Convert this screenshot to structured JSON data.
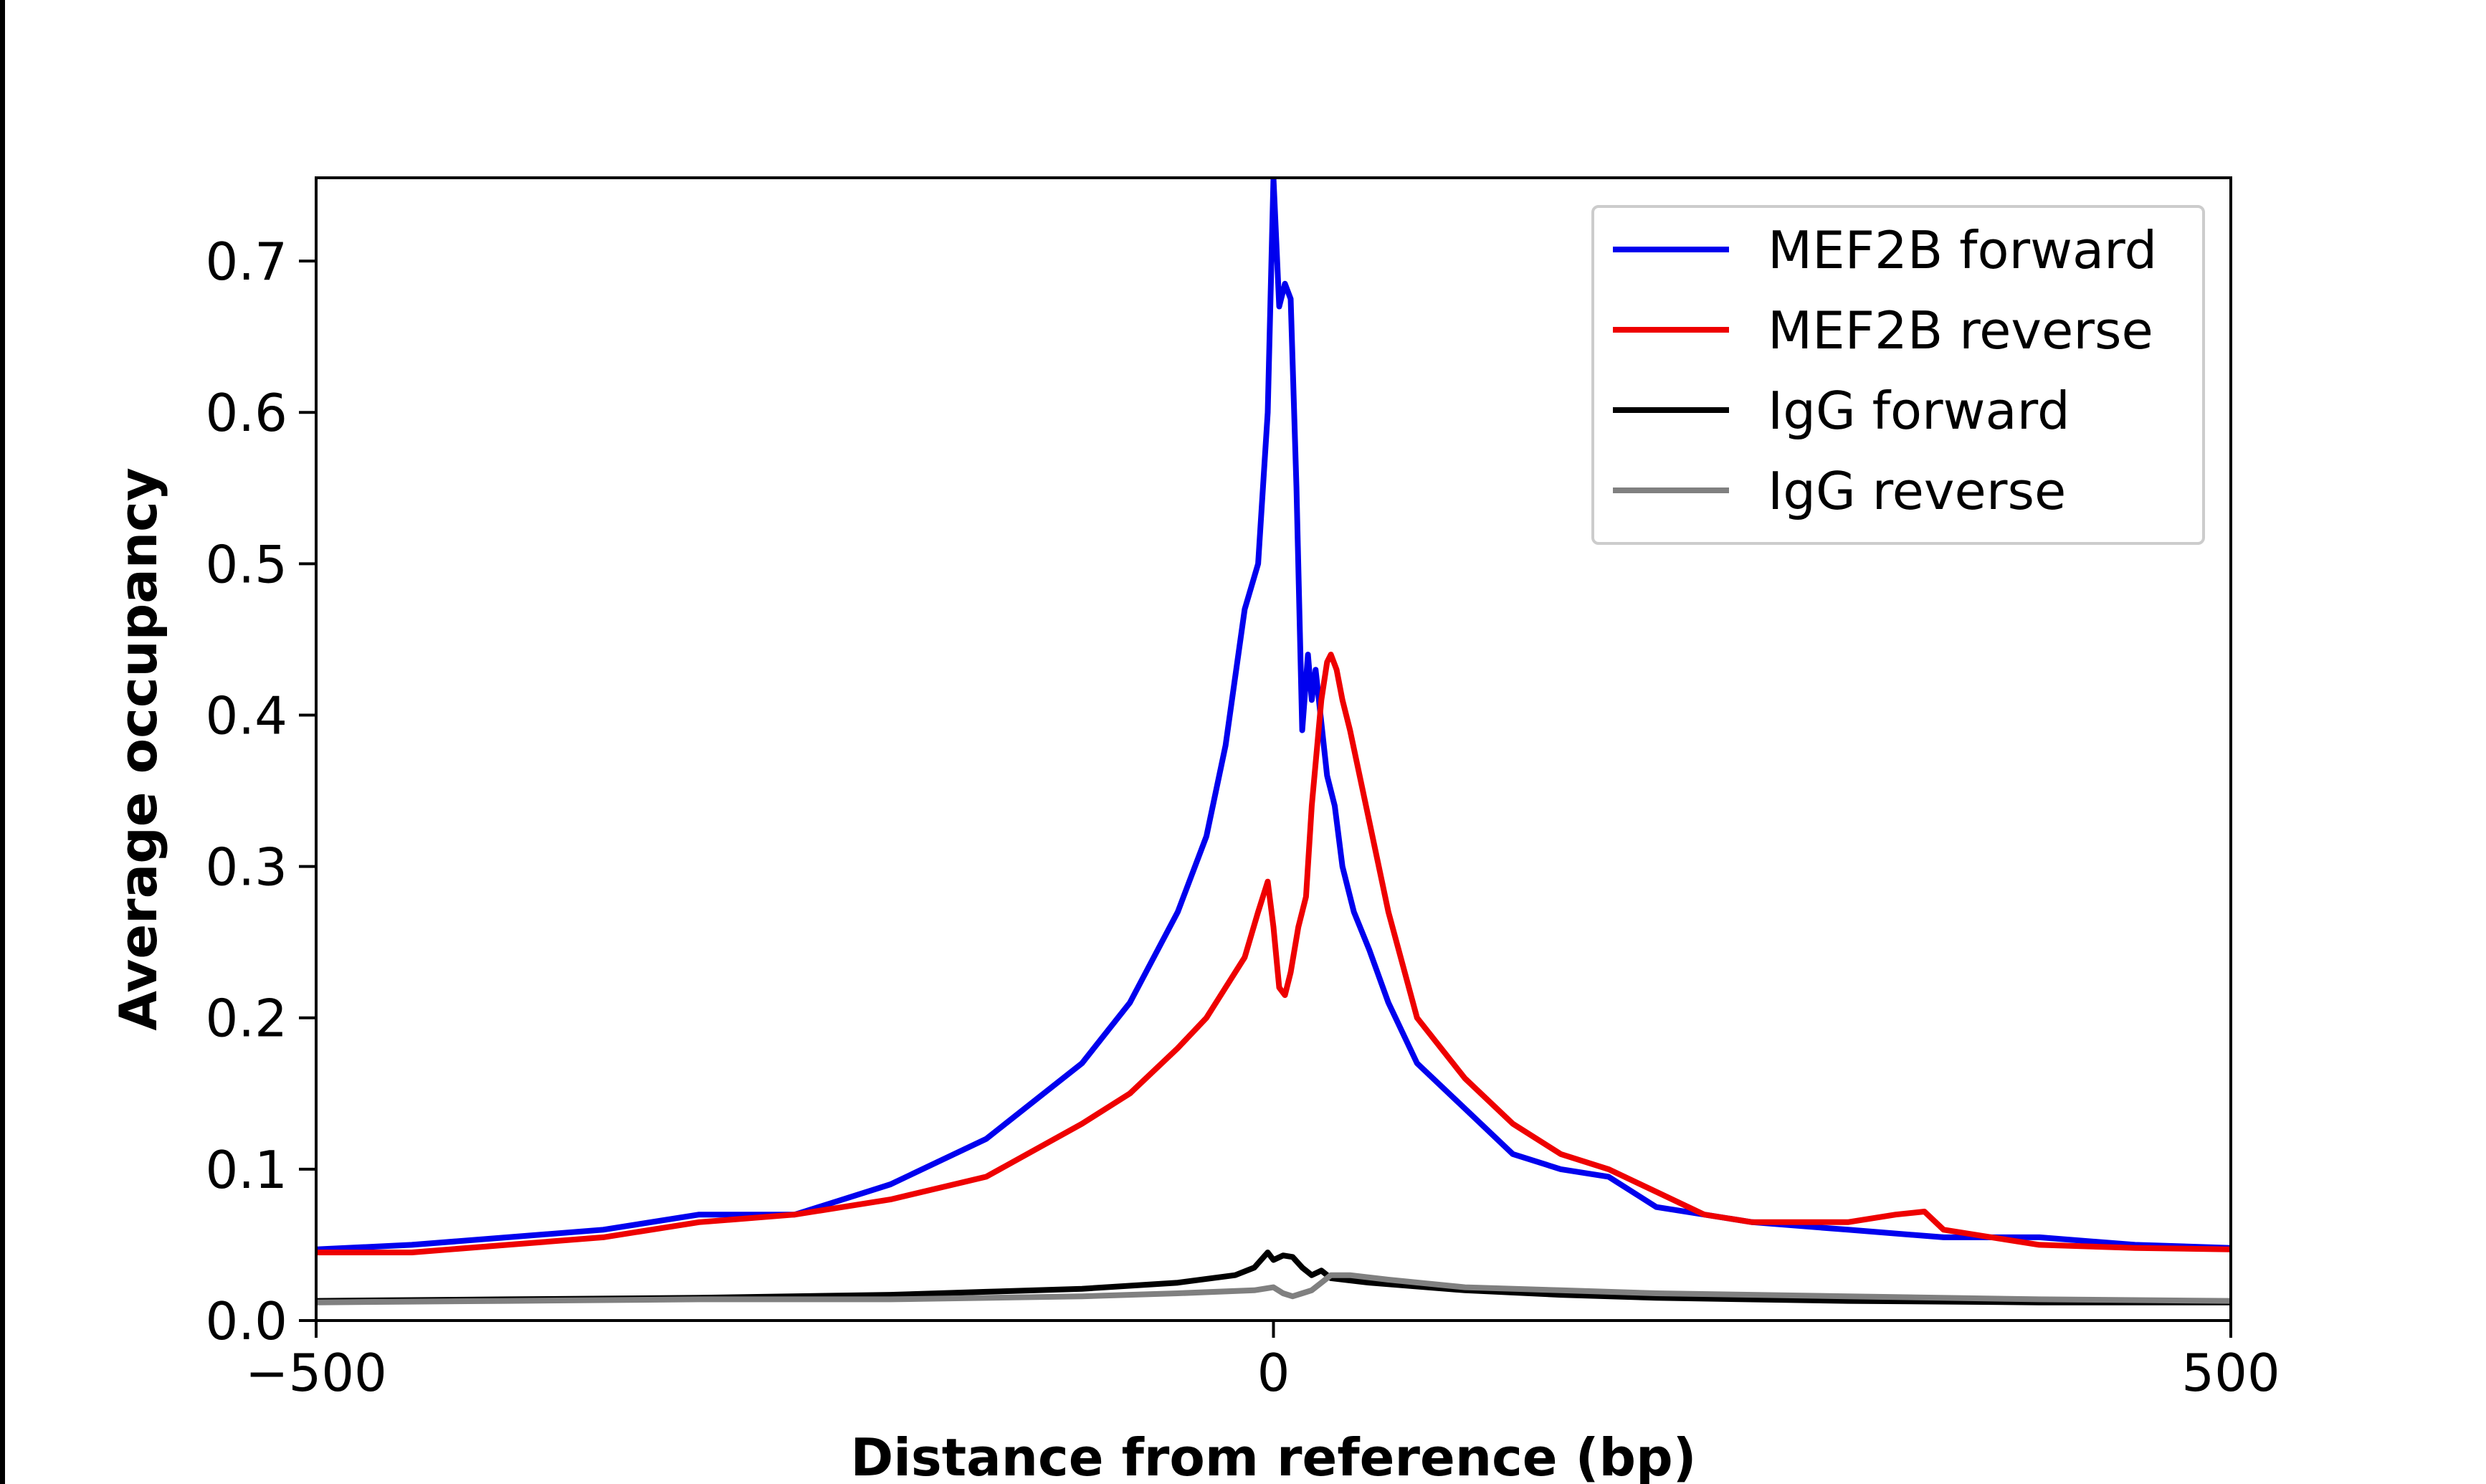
{
  "chart_data": {
    "type": "line",
    "title": "",
    "xlabel": "Distance from reference (bp)",
    "ylabel": "Average occupancy",
    "xlim": [
      -500,
      500
    ],
    "ylim": [
      0,
      0.755
    ],
    "xticks": [
      -500,
      0,
      500
    ],
    "xtick_labels": [
      "−500",
      "0",
      "500"
    ],
    "yticks": [
      0.0,
      0.1,
      0.2,
      0.3,
      0.4,
      0.5,
      0.6,
      0.7
    ],
    "ytick_labels": [
      "0.0",
      "0.1",
      "0.2",
      "0.3",
      "0.4",
      "0.5",
      "0.6",
      "0.7"
    ],
    "grid": false,
    "legend_position": "top-right",
    "series": [
      {
        "name": "MEF2B forward",
        "color": "#0000ee",
        "x": [
          -500,
          -450,
          -400,
          -350,
          -300,
          -250,
          -200,
          -150,
          -100,
          -75,
          -50,
          -35,
          -25,
          -15,
          -8,
          -3,
          0,
          3,
          6,
          9,
          12,
          15,
          18,
          20,
          22,
          25,
          28,
          32,
          36,
          42,
          50,
          60,
          75,
          100,
          125,
          150,
          175,
          200,
          225,
          250,
          300,
          350,
          400,
          450,
          500
        ],
        "y": [
          0.047,
          0.05,
          0.055,
          0.06,
          0.07,
          0.07,
          0.09,
          0.12,
          0.17,
          0.21,
          0.27,
          0.32,
          0.38,
          0.47,
          0.5,
          0.6,
          0.755,
          0.67,
          0.685,
          0.675,
          0.55,
          0.39,
          0.44,
          0.41,
          0.43,
          0.395,
          0.36,
          0.34,
          0.3,
          0.27,
          0.245,
          0.21,
          0.17,
          0.14,
          0.11,
          0.1,
          0.095,
          0.075,
          0.07,
          0.065,
          0.06,
          0.055,
          0.055,
          0.05,
          0.048
        ]
      },
      {
        "name": "MEF2B reverse",
        "color": "#ee0000",
        "x": [
          -500,
          -450,
          -400,
          -350,
          -300,
          -250,
          -200,
          -150,
          -100,
          -75,
          -50,
          -35,
          -25,
          -15,
          -8,
          -3,
          0,
          3,
          6,
          9,
          13,
          17,
          20,
          25,
          28,
          30,
          33,
          36,
          40,
          45,
          50,
          60,
          75,
          100,
          125,
          150,
          175,
          200,
          225,
          250,
          300,
          325,
          340,
          350,
          375,
          400,
          450,
          500
        ],
        "y": [
          0.045,
          0.045,
          0.05,
          0.055,
          0.065,
          0.07,
          0.08,
          0.095,
          0.13,
          0.15,
          0.18,
          0.2,
          0.22,
          0.24,
          0.27,
          0.29,
          0.26,
          0.22,
          0.215,
          0.23,
          0.26,
          0.28,
          0.34,
          0.41,
          0.435,
          0.44,
          0.43,
          0.41,
          0.39,
          0.36,
          0.33,
          0.27,
          0.2,
          0.16,
          0.13,
          0.11,
          0.1,
          0.085,
          0.07,
          0.065,
          0.065,
          0.07,
          0.072,
          0.06,
          0.055,
          0.05,
          0.048,
          0.047
        ]
      },
      {
        "name": "IgG forward",
        "color": "#000000",
        "x": [
          -500,
          -400,
          -300,
          -200,
          -150,
          -100,
          -50,
          -20,
          -10,
          -3,
          0,
          5,
          10,
          15,
          20,
          25,
          30,
          50,
          100,
          150,
          200,
          300,
          400,
          500
        ],
        "y": [
          0.013,
          0.014,
          0.015,
          0.017,
          0.019,
          0.021,
          0.025,
          0.03,
          0.035,
          0.045,
          0.04,
          0.043,
          0.042,
          0.035,
          0.03,
          0.033,
          0.028,
          0.025,
          0.02,
          0.017,
          0.015,
          0.013,
          0.012,
          0.012
        ]
      },
      {
        "name": "IgG reverse",
        "color": "#808080",
        "x": [
          -500,
          -400,
          -300,
          -200,
          -100,
          -50,
          -10,
          0,
          5,
          10,
          15,
          20,
          25,
          30,
          40,
          60,
          100,
          150,
          200,
          300,
          400,
          500
        ],
        "y": [
          0.012,
          0.013,
          0.014,
          0.014,
          0.016,
          0.018,
          0.02,
          0.022,
          0.018,
          0.016,
          0.018,
          0.02,
          0.025,
          0.03,
          0.03,
          0.027,
          0.022,
          0.02,
          0.018,
          0.016,
          0.014,
          0.013
        ]
      }
    ]
  }
}
